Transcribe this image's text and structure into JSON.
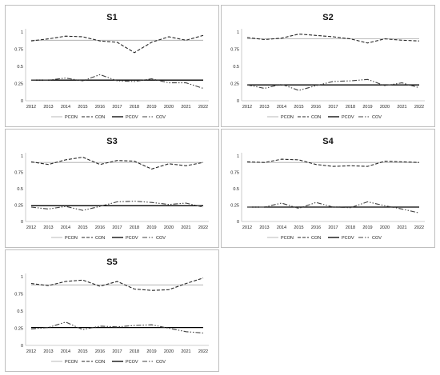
{
  "chart_data": [
    {
      "type": "line",
      "title": "S1",
      "categories": [
        "2012",
        "2013",
        "2014",
        "2015",
        "2016",
        "2017",
        "2018",
        "2019",
        "2020",
        "2021",
        "2022"
      ],
      "ylim": [
        0,
        1
      ],
      "yticks": [
        "0",
        "0.25",
        "0.5",
        "0.75",
        "1"
      ],
      "legend": [
        "PCON",
        "CON",
        "PCOV",
        "COV"
      ],
      "legend_position": "bottom",
      "series": [
        {
          "name": "PCON",
          "values": [
            0.88,
            0.88,
            0.88,
            0.88,
            0.88,
            0.88,
            0.88,
            0.88,
            0.88,
            0.88,
            0.88
          ]
        },
        {
          "name": "CON",
          "values": [
            0.87,
            0.9,
            0.94,
            0.93,
            0.87,
            0.85,
            0.7,
            0.85,
            0.93,
            0.88,
            0.95
          ]
        },
        {
          "name": "PCOV",
          "values": [
            0.3,
            0.3,
            0.3,
            0.3,
            0.3,
            0.3,
            0.3,
            0.3,
            0.3,
            0.3,
            0.3
          ]
        },
        {
          "name": "COV",
          "values": [
            0.3,
            0.3,
            0.33,
            0.29,
            0.38,
            0.29,
            0.28,
            0.32,
            0.26,
            0.26,
            0.18
          ]
        }
      ]
    },
    {
      "type": "line",
      "title": "S2",
      "categories": [
        "2012",
        "2013",
        "2014",
        "2015",
        "2016",
        "2017",
        "2018",
        "2019",
        "2020",
        "2021",
        "2022"
      ],
      "ylim": [
        0,
        1
      ],
      "yticks": [
        "0",
        "0.25",
        "0.5",
        "0.75",
        "1"
      ],
      "legend": [
        "PCON",
        "CON",
        "PCOV",
        "COV"
      ],
      "legend_position": "bottom",
      "series": [
        {
          "name": "PCON",
          "values": [
            0.9,
            0.9,
            0.9,
            0.9,
            0.9,
            0.9,
            0.9,
            0.9,
            0.9,
            0.9,
            0.9
          ]
        },
        {
          "name": "CON",
          "values": [
            0.92,
            0.89,
            0.91,
            0.97,
            0.95,
            0.93,
            0.9,
            0.84,
            0.9,
            0.88,
            0.87
          ]
        },
        {
          "name": "PCOV",
          "values": [
            0.23,
            0.23,
            0.23,
            0.23,
            0.23,
            0.23,
            0.23,
            0.23,
            0.23,
            0.23,
            0.23
          ]
        },
        {
          "name": "COV",
          "values": [
            0.23,
            0.18,
            0.24,
            0.15,
            0.22,
            0.28,
            0.29,
            0.31,
            0.22,
            0.26,
            0.19
          ]
        }
      ]
    },
    {
      "type": "line",
      "title": "S3",
      "categories": [
        "2012",
        "2013",
        "2014",
        "2015",
        "2016",
        "2017",
        "2018",
        "2019",
        "2020",
        "2021",
        "2022"
      ],
      "ylim": [
        0,
        1
      ],
      "yticks": [
        "0",
        "0.25",
        "0.5",
        "0.75",
        "1"
      ],
      "legend": [
        "PCON",
        "CON",
        "PCOV",
        "COV"
      ],
      "legend_position": "bottom",
      "series": [
        {
          "name": "PCON",
          "values": [
            0.9,
            0.9,
            0.9,
            0.9,
            0.9,
            0.9,
            0.9,
            0.9,
            0.9,
            0.9,
            0.9
          ]
        },
        {
          "name": "CON",
          "values": [
            0.91,
            0.87,
            0.94,
            0.98,
            0.87,
            0.93,
            0.92,
            0.8,
            0.88,
            0.85,
            0.9
          ]
        },
        {
          "name": "PCOV",
          "values": [
            0.24,
            0.24,
            0.24,
            0.24,
            0.24,
            0.24,
            0.24,
            0.24,
            0.24,
            0.24,
            0.24
          ]
        },
        {
          "name": "COV",
          "values": [
            0.22,
            0.19,
            0.23,
            0.17,
            0.23,
            0.3,
            0.31,
            0.29,
            0.26,
            0.28,
            0.22
          ]
        }
      ]
    },
    {
      "type": "line",
      "title": "S4",
      "categories": [
        "2012",
        "2013",
        "2014",
        "2015",
        "2016",
        "2017",
        "2018",
        "2019",
        "2020",
        "2021",
        "2022"
      ],
      "ylim": [
        0,
        1
      ],
      "yticks": [
        "0",
        "0.25",
        "0.5",
        "0.75",
        "1"
      ],
      "legend": [
        "PCON",
        "CON",
        "PCOV",
        "COV"
      ],
      "legend_position": "bottom",
      "series": [
        {
          "name": "PCON",
          "values": [
            0.9,
            0.9,
            0.9,
            0.9,
            0.9,
            0.9,
            0.9,
            0.9,
            0.9,
            0.9,
            0.9
          ]
        },
        {
          "name": "CON",
          "values": [
            0.91,
            0.9,
            0.95,
            0.94,
            0.87,
            0.84,
            0.85,
            0.84,
            0.92,
            0.91,
            0.9
          ]
        },
        {
          "name": "PCOV",
          "values": [
            0.22,
            0.22,
            0.22,
            0.22,
            0.22,
            0.22,
            0.22,
            0.22,
            0.22,
            0.22,
            0.22
          ]
        },
        {
          "name": "COV",
          "values": [
            0.22,
            0.22,
            0.28,
            0.2,
            0.29,
            0.22,
            0.21,
            0.3,
            0.24,
            0.19,
            0.13
          ]
        }
      ]
    },
    {
      "type": "line",
      "title": "S5",
      "categories": [
        "2012",
        "2013",
        "2014",
        "2015",
        "2016",
        "2017",
        "2018",
        "2019",
        "2020",
        "2021",
        "2022"
      ],
      "ylim": [
        0,
        1
      ],
      "yticks": [
        "0",
        "0.25",
        "0.5",
        "0.75",
        "1"
      ],
      "legend": [
        "PCON",
        "CON",
        "PCOV",
        "COV"
      ],
      "legend_position": "bottom",
      "series": [
        {
          "name": "PCON",
          "values": [
            0.88,
            0.88,
            0.88,
            0.88,
            0.88,
            0.88,
            0.88,
            0.88,
            0.88,
            0.88,
            0.88
          ]
        },
        {
          "name": "CON",
          "values": [
            0.9,
            0.87,
            0.93,
            0.95,
            0.86,
            0.93,
            0.82,
            0.8,
            0.81,
            0.9,
            0.98
          ]
        },
        {
          "name": "PCOV",
          "values": [
            0.26,
            0.26,
            0.26,
            0.26,
            0.26,
            0.26,
            0.26,
            0.26,
            0.26,
            0.26,
            0.26
          ]
        },
        {
          "name": "COV",
          "values": [
            0.24,
            0.26,
            0.34,
            0.23,
            0.28,
            0.27,
            0.29,
            0.3,
            0.25,
            0.2,
            0.18
          ]
        }
      ]
    }
  ],
  "style": {
    "colors": {
      "PCON": "#a6a6a6",
      "CON": "#262626",
      "PCOV": "#000000",
      "COV": "#404040"
    },
    "dashes": {
      "PCON": "",
      "CON": "4 2",
      "PCOV": "",
      "COV": "6 2 1.5 2 1.5 2"
    },
    "widths": {
      "PCON": 0.8,
      "CON": 1.1,
      "PCOV": 1.3,
      "COV": 1.1
    }
  }
}
